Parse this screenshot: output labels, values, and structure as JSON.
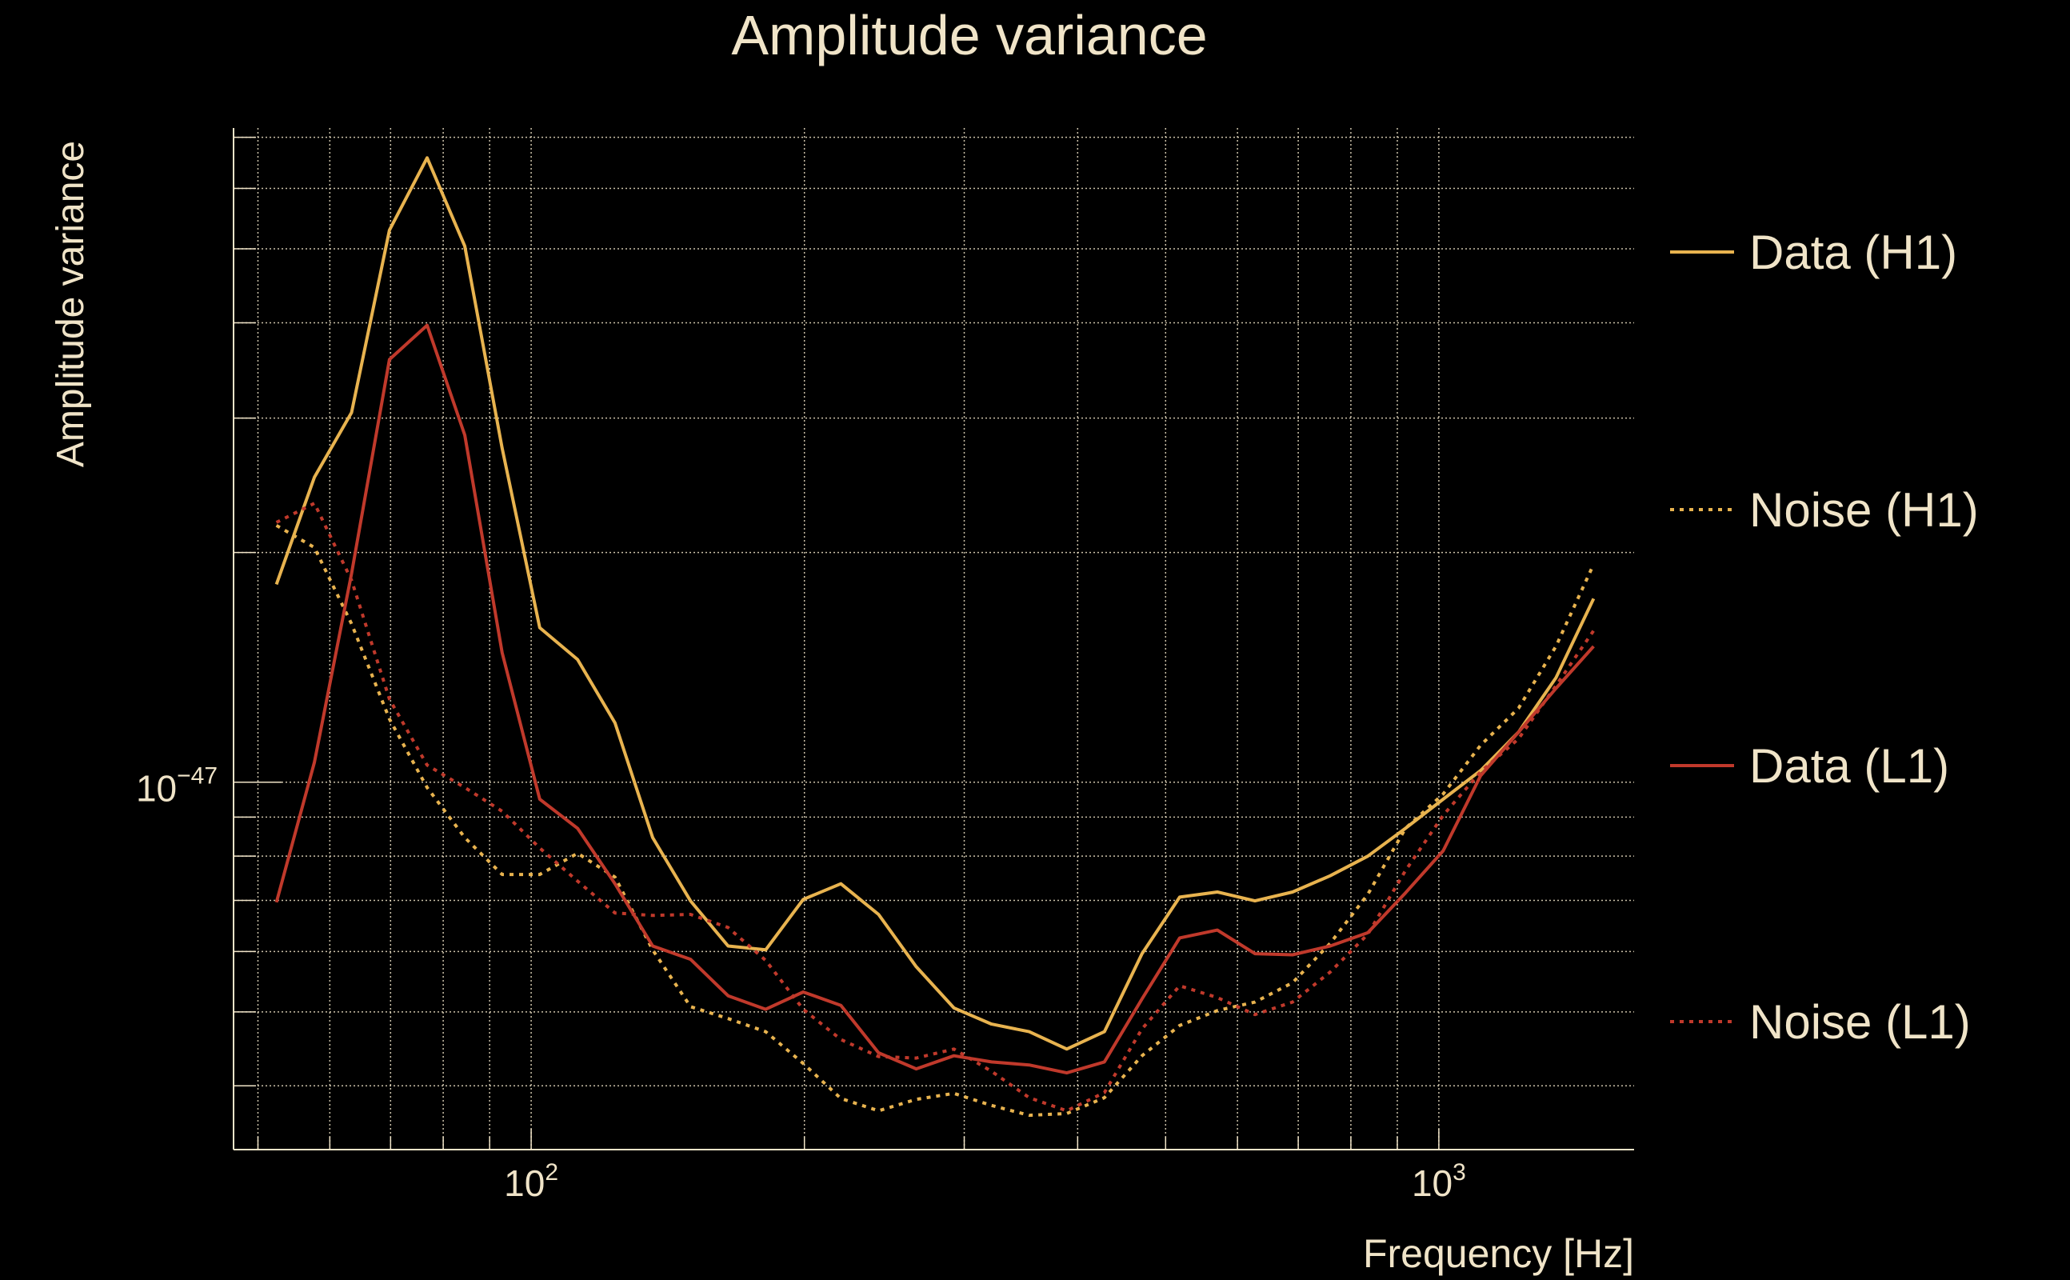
{
  "chart_data": {
    "type": "line",
    "title": "Amplitude variance",
    "xlabel": "Frequency [Hz]",
    "ylabel": "Amplitude variance",
    "xscale": "log",
    "yscale": "log",
    "xlim": [
      47,
      1641
    ],
    "ylim": [
      3.3e-48,
      7.2e-47
    ],
    "grid": true,
    "legend_placement": "right-outside",
    "x_ticks": [
      {
        "value": 100,
        "base": "10",
        "exp": "2"
      },
      {
        "value": 1000,
        "base": "10",
        "exp": "3"
      }
    ],
    "y_ticks": [
      {
        "value": 1e-47,
        "base": "10",
        "exp": "−47"
      }
    ],
    "x_minor_grid": [
      50,
      60,
      70,
      80,
      90,
      200,
      300,
      400,
      500,
      600,
      700,
      800,
      900
    ],
    "y_minor_grid": [
      4e-48,
      5e-48,
      6e-48,
      7e-48,
      8e-48,
      9e-48,
      2e-47,
      3e-47,
      4e-47,
      5e-47,
      6e-47,
      7e-47
    ],
    "y_unit": 1e-47,
    "x": [
      52.4,
      57.7,
      63.4,
      69.8,
      76.8,
      84.5,
      92.9,
      102.2,
      112.5,
      123.7,
      136.1,
      149.8,
      164.8,
      181.3,
      199.4,
      219.4,
      241.4,
      265.6,
      292.2,
      321.5,
      353.7,
      389.1,
      428.1,
      471.0,
      518.2,
      570.1,
      627.2,
      690.0,
      759.2,
      835.2,
      918.9,
      1011,
      1112,
      1224,
      1346,
      1481
    ],
    "series": [
      {
        "name": "Data (H1)",
        "color": "#e8b34f",
        "style": "solid",
        "values": [
          1.817,
          2.51,
          3.05,
          5.29,
          6.58,
          5.04,
          2.74,
          1.594,
          1.448,
          1.196,
          0.846,
          0.699,
          0.61,
          0.603,
          0.702,
          0.736,
          0.671,
          0.573,
          0.506,
          0.482,
          0.471,
          0.447,
          0.471,
          0.596,
          0.707,
          0.718,
          0.699,
          0.718,
          0.754,
          0.8,
          0.87,
          0.95,
          1.036,
          1.163,
          1.37,
          1.74
        ]
      },
      {
        "name": "Noise (H1)",
        "color": "#e8b34f",
        "style": "dotted",
        "values": [
          2.17,
          2.03,
          1.613,
          1.21,
          0.984,
          0.846,
          0.757,
          0.757,
          0.807,
          0.751,
          0.603,
          0.508,
          0.49,
          0.471,
          0.428,
          0.385,
          0.371,
          0.384,
          0.391,
          0.377,
          0.366,
          0.368,
          0.386,
          0.438,
          0.48,
          0.502,
          0.515,
          0.546,
          0.615,
          0.713,
          0.87,
          0.965,
          1.118,
          1.25,
          1.507,
          1.93
        ]
      },
      {
        "name": "Data (L1)",
        "color": "#c0392b",
        "style": "solid",
        "values": [
          0.696,
          1.062,
          1.876,
          3.58,
          3.97,
          2.85,
          1.478,
          0.95,
          0.87,
          0.736,
          0.61,
          0.586,
          0.525,
          0.504,
          0.531,
          0.51,
          0.442,
          0.421,
          0.438,
          0.43,
          0.426,
          0.416,
          0.43,
          0.52,
          0.625,
          0.64,
          0.596,
          0.594,
          0.61,
          0.635,
          0.716,
          0.813,
          1.02,
          1.163,
          1.327,
          1.507
        ]
      },
      {
        "name": "Noise (L1)",
        "color": "#c0392b",
        "style": "dotted",
        "values": [
          2.19,
          2.32,
          1.84,
          1.285,
          1.053,
          0.984,
          0.916,
          0.82,
          0.742,
          0.674,
          0.669,
          0.671,
          0.645,
          0.584,
          0.504,
          0.46,
          0.437,
          0.435,
          0.447,
          0.418,
          0.386,
          0.371,
          0.392,
          0.475,
          0.541,
          0.522,
          0.496,
          0.515,
          0.564,
          0.632,
          0.766,
          0.905,
          1.032,
          1.14,
          1.338,
          1.58
        ]
      }
    ]
  }
}
